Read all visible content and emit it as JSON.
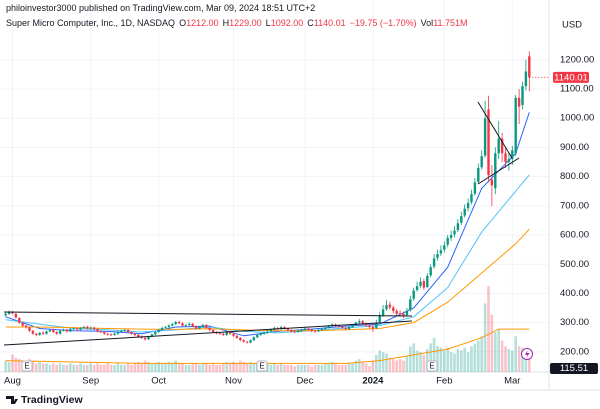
{
  "header": {
    "publisher": "philoinvestor3000 published on TradingView.com, Mar 09, 2024 18:51 UTC+2",
    "symbol": "Super Micro Computer, Inc., 1D, NASDAQ",
    "ohlc_legend": [
      {
        "label": "O",
        "value": "1212.00"
      },
      {
        "label": "H",
        "value": "1229.00"
      },
      {
        "label": "L",
        "value": "1092.00"
      },
      {
        "label": "C",
        "value": "1140.01"
      },
      {
        "label": "",
        "value": "−19.75 (−1.70%)"
      },
      {
        "label": "Vol",
        "value": "11.751M"
      }
    ],
    "currency": "USD"
  },
  "footer": {
    "logo": "TradingView"
  },
  "chart_data": {
    "type": "candlestick",
    "up_color": "#089981",
    "down_color": "#f23645",
    "ylim": [
      131,
      1350
    ],
    "yticks": [
      {
        "value": 200,
        "label": "200.00"
      },
      {
        "value": 300,
        "label": "300.00"
      },
      {
        "value": 400,
        "label": "400.00"
      },
      {
        "value": 500,
        "label": "500.00"
      },
      {
        "value": 600,
        "label": "600.00"
      },
      {
        "value": 700,
        "label": "700.00"
      },
      {
        "value": 800,
        "label": "800.00"
      },
      {
        "value": 900,
        "label": "900.00"
      },
      {
        "value": 1000,
        "label": "1000.00"
      },
      {
        "value": 1100,
        "label": "1100.00"
      },
      {
        "value": 1200,
        "label": "1200.00"
      }
    ],
    "grid": true,
    "categories": [
      null,
      null,
      "Aug",
      null,
      null,
      null,
      null,
      null,
      null,
      null,
      null,
      null,
      null,
      null,
      null,
      null,
      null,
      null,
      null,
      null,
      null,
      null,
      null,
      null,
      null,
      "Sep",
      null,
      null,
      null,
      null,
      null,
      null,
      null,
      null,
      null,
      null,
      null,
      null,
      null,
      null,
      null,
      null,
      null,
      null,
      null,
      "Oct",
      null,
      null,
      null,
      null,
      null,
      null,
      null,
      null,
      null,
      null,
      null,
      null,
      null,
      null,
      null,
      null,
      null,
      null,
      null,
      null,
      null,
      "Nov",
      null,
      null,
      null,
      null,
      null,
      null,
      null,
      null,
      null,
      null,
      null,
      null,
      null,
      null,
      null,
      null,
      null,
      null,
      null,
      null,
      "Dec",
      null,
      null,
      null,
      null,
      null,
      null,
      null,
      null,
      null,
      null,
      null,
      null,
      null,
      null,
      null,
      null,
      null,
      null,
      null,
      "2024",
      null,
      null,
      null,
      null,
      null,
      null,
      null,
      null,
      null,
      null,
      null,
      null,
      null,
      null,
      null,
      null,
      null,
      null,
      null,
      null,
      "Feb",
      null,
      null,
      null,
      null,
      null,
      null,
      null,
      null,
      null,
      null,
      null,
      null,
      null,
      null,
      null,
      null,
      null,
      null,
      null,
      "Mar",
      null,
      null,
      null,
      null,
      null
    ],
    "open": [
      325,
      330,
      336,
      330,
      316,
      300,
      290,
      284,
      272,
      262,
      258,
      266,
      262,
      270,
      276,
      268,
      262,
      272,
      276,
      270,
      278,
      280,
      276,
      282,
      286,
      280,
      283,
      278,
      270,
      268,
      262,
      260,
      258,
      262,
      268,
      272,
      275,
      268,
      262,
      258,
      252,
      248,
      243,
      252,
      260,
      268,
      275,
      282,
      285,
      290,
      295,
      302,
      298,
      290,
      292,
      296,
      288,
      280,
      286,
      292,
      282,
      275,
      268,
      264,
      262,
      258,
      270,
      262,
      255,
      248,
      240,
      235,
      232,
      240,
      250,
      258,
      262,
      266,
      270,
      276,
      282,
      278,
      285,
      280,
      275,
      270,
      268,
      272,
      276,
      280,
      276,
      272,
      270,
      274,
      278,
      283,
      288,
      294,
      290,
      286,
      282,
      278,
      285,
      292,
      300,
      305,
      298,
      290,
      285,
      282,
      302,
      326,
      346,
      362,
      352,
      340,
      332,
      330,
      326,
      342,
      382,
      412,
      426,
      442,
      422,
      462,
      492,
      522,
      537,
      550,
      567,
      590,
      602,
      617,
      642,
      667,
      692,
      712,
      742,
      782,
      832,
      872,
      1030,
      790,
      760,
      880,
      930,
      880,
      850,
      860,
      880,
      1070,
      1045,
      1110,
      1212
    ],
    "high": [
      335,
      342,
      340,
      333,
      318,
      303,
      293,
      286,
      275,
      265,
      268,
      270,
      273,
      278,
      279,
      271,
      275,
      280,
      279,
      281,
      284,
      283,
      285,
      290,
      289,
      287,
      286,
      281,
      273,
      271,
      266,
      263,
      266,
      271,
      276,
      279,
      278,
      271,
      265,
      261,
      256,
      251,
      255,
      263,
      271,
      278,
      286,
      289,
      294,
      299,
      306,
      307,
      301,
      296,
      300,
      299,
      291,
      289,
      296,
      295,
      285,
      278,
      271,
      268,
      265,
      273,
      273,
      265,
      258,
      251,
      243,
      238,
      243,
      253,
      261,
      266,
      270,
      274,
      280,
      286,
      285,
      289,
      288,
      283,
      278,
      273,
      276,
      280,
      284,
      283,
      279,
      275,
      278,
      282,
      287,
      292,
      298,
      297,
      293,
      289,
      285,
      289,
      296,
      304,
      312,
      309,
      301,
      293,
      297,
      310,
      335,
      360,
      378,
      372,
      358,
      346,
      342,
      338,
      350,
      392,
      420,
      440,
      455,
      450,
      470,
      500,
      535,
      550,
      565,
      578,
      600,
      615,
      630,
      655,
      680,
      705,
      725,
      755,
      795,
      845,
      890,
      1060,
      1077,
      840,
      900,
      990,
      950,
      900,
      880,
      905,
      1080,
      1100,
      1125,
      1200,
      1229
    ],
    "low": [
      320,
      326,
      328,
      314,
      296,
      286,
      280,
      268,
      258,
      253,
      255,
      258,
      259,
      267,
      265,
      258,
      259,
      270,
      266,
      267,
      275,
      272,
      273,
      279,
      276,
      276,
      274,
      266,
      264,
      258,
      256,
      254,
      255,
      259,
      265,
      269,
      265,
      258,
      254,
      248,
      244,
      238,
      240,
      249,
      257,
      265,
      272,
      279,
      282,
      287,
      292,
      295,
      286,
      286,
      289,
      284,
      276,
      277,
      283,
      278,
      271,
      264,
      260,
      258,
      254,
      255,
      258,
      251,
      244,
      236,
      231,
      228,
      229,
      237,
      247,
      255,
      259,
      263,
      267,
      273,
      274,
      275,
      276,
      271,
      266,
      264,
      265,
      269,
      273,
      272,
      268,
      266,
      267,
      271,
      275,
      280,
      285,
      286,
      282,
      278,
      274,
      275,
      282,
      289,
      296,
      294,
      286,
      280,
      268,
      278,
      298,
      320,
      340,
      344,
      332,
      322,
      320,
      315,
      320,
      338,
      375,
      405,
      418,
      412,
      418,
      455,
      485,
      512,
      528,
      540,
      558,
      580,
      592,
      610,
      635,
      660,
      680,
      705,
      735,
      775,
      825,
      865,
      780,
      700,
      740,
      860,
      850,
      830,
      820,
      840,
      870,
      980,
      1030,
      1095,
      1092
    ],
    "close": [
      330,
      335,
      332,
      318,
      300,
      290,
      285,
      272,
      262,
      258,
      265,
      262,
      270,
      275,
      268,
      262,
      272,
      275,
      270,
      278,
      280,
      276,
      282,
      285,
      280,
      283,
      278,
      270,
      268,
      262,
      260,
      258,
      262,
      268,
      272,
      275,
      268,
      262,
      258,
      252,
      248,
      243,
      252,
      260,
      268,
      275,
      282,
      285,
      290,
      295,
      302,
      298,
      290,
      292,
      296,
      288,
      280,
      286,
      292,
      282,
      275,
      268,
      264,
      262,
      258,
      270,
      262,
      255,
      248,
      240,
      235,
      232,
      240,
      250,
      258,
      262,
      266,
      270,
      276,
      282,
      278,
      285,
      280,
      275,
      270,
      268,
      272,
      276,
      280,
      276,
      272,
      270,
      274,
      278,
      283,
      288,
      294,
      290,
      286,
      282,
      278,
      285,
      292,
      300,
      305,
      298,
      290,
      285,
      280,
      300,
      325,
      345,
      360,
      352,
      340,
      330,
      330,
      325,
      340,
      380,
      410,
      425,
      440,
      420,
      460,
      490,
      520,
      535,
      548,
      565,
      590,
      600,
      615,
      640,
      665,
      690,
      710,
      740,
      780,
      830,
      870,
      1000,
      805,
      770,
      880,
      930,
      880,
      850,
      860,
      890,
      1070,
      1040,
      1110,
      1160,
      1140.01
    ],
    "volume": [
      8,
      7,
      12,
      10,
      9,
      8,
      7,
      9,
      8,
      6,
      7,
      6,
      6,
      5,
      6,
      5,
      6,
      5,
      5,
      6,
      5,
      5,
      6,
      5,
      5,
      6,
      5,
      6,
      5,
      5,
      6,
      5,
      5,
      6,
      5,
      5,
      6,
      5,
      6,
      7,
      6,
      8,
      7,
      6,
      6,
      7,
      6,
      6,
      7,
      6,
      8,
      6,
      6,
      5,
      5,
      6,
      6,
      5,
      6,
      6,
      5,
      6,
      5,
      5,
      6,
      7,
      6,
      7,
      6,
      8,
      7,
      6,
      7,
      6,
      6,
      5,
      5,
      6,
      5,
      6,
      5,
      6,
      5,
      5,
      5,
      4,
      5,
      5,
      5,
      5,
      4,
      5,
      5,
      5,
      6,
      6,
      7,
      6,
      5,
      5,
      5,
      6,
      6,
      8,
      9,
      7,
      6,
      4,
      8,
      12,
      15,
      14,
      13,
      10,
      9,
      8,
      9,
      8,
      11,
      18,
      20,
      15,
      14,
      12,
      16,
      20,
      24,
      18,
      17,
      15,
      17,
      14,
      13,
      16,
      15,
      17,
      14,
      18,
      20,
      22,
      25,
      48,
      60,
      40,
      28,
      30,
      22,
      18,
      16,
      15,
      25,
      18,
      17,
      15,
      11.751
    ],
    "ma_lines": [
      {
        "color": "#2962ff",
        "x": [
          0,
          10,
          20,
          30,
          40,
          50,
          60,
          70,
          80,
          90,
          100,
          110,
          120,
          130,
          140,
          150,
          154
        ],
        "values": [
          320,
          280,
          272,
          270,
          262,
          285,
          288,
          255,
          270,
          278,
          288,
          295,
          350,
          490,
          760,
          880,
          1020
        ]
      },
      {
        "color": "#4fc3f7",
        "x": [
          0,
          10,
          20,
          30,
          40,
          50,
          60,
          70,
          80,
          90,
          100,
          110,
          120,
          130,
          140,
          150,
          154
        ],
        "values": [
          310,
          295,
          280,
          275,
          268,
          275,
          285,
          270,
          265,
          272,
          282,
          290,
          320,
          420,
          610,
          750,
          806
        ]
      },
      {
        "color": "#ff9800",
        "x": [
          0,
          10,
          20,
          30,
          40,
          50,
          60,
          70,
          80,
          90,
          100,
          110,
          120,
          130,
          140,
          150,
          154
        ],
        "values": [
          285,
          285,
          283,
          280,
          278,
          277,
          279,
          275,
          272,
          272,
          276,
          280,
          300,
          370,
          470,
          570,
          620
        ]
      }
    ],
    "volume_ma": {
      "color": "#ff9800",
      "x": [
        0,
        20,
        40,
        60,
        80,
        100,
        110,
        120,
        130,
        140,
        145,
        154
      ],
      "values": [
        8,
        7,
        6,
        6,
        6,
        6,
        8,
        12,
        16,
        24,
        30,
        30
      ]
    },
    "event_labels": [
      "E",
      "E",
      "E"
    ],
    "indicator_label": "115.51"
  }
}
